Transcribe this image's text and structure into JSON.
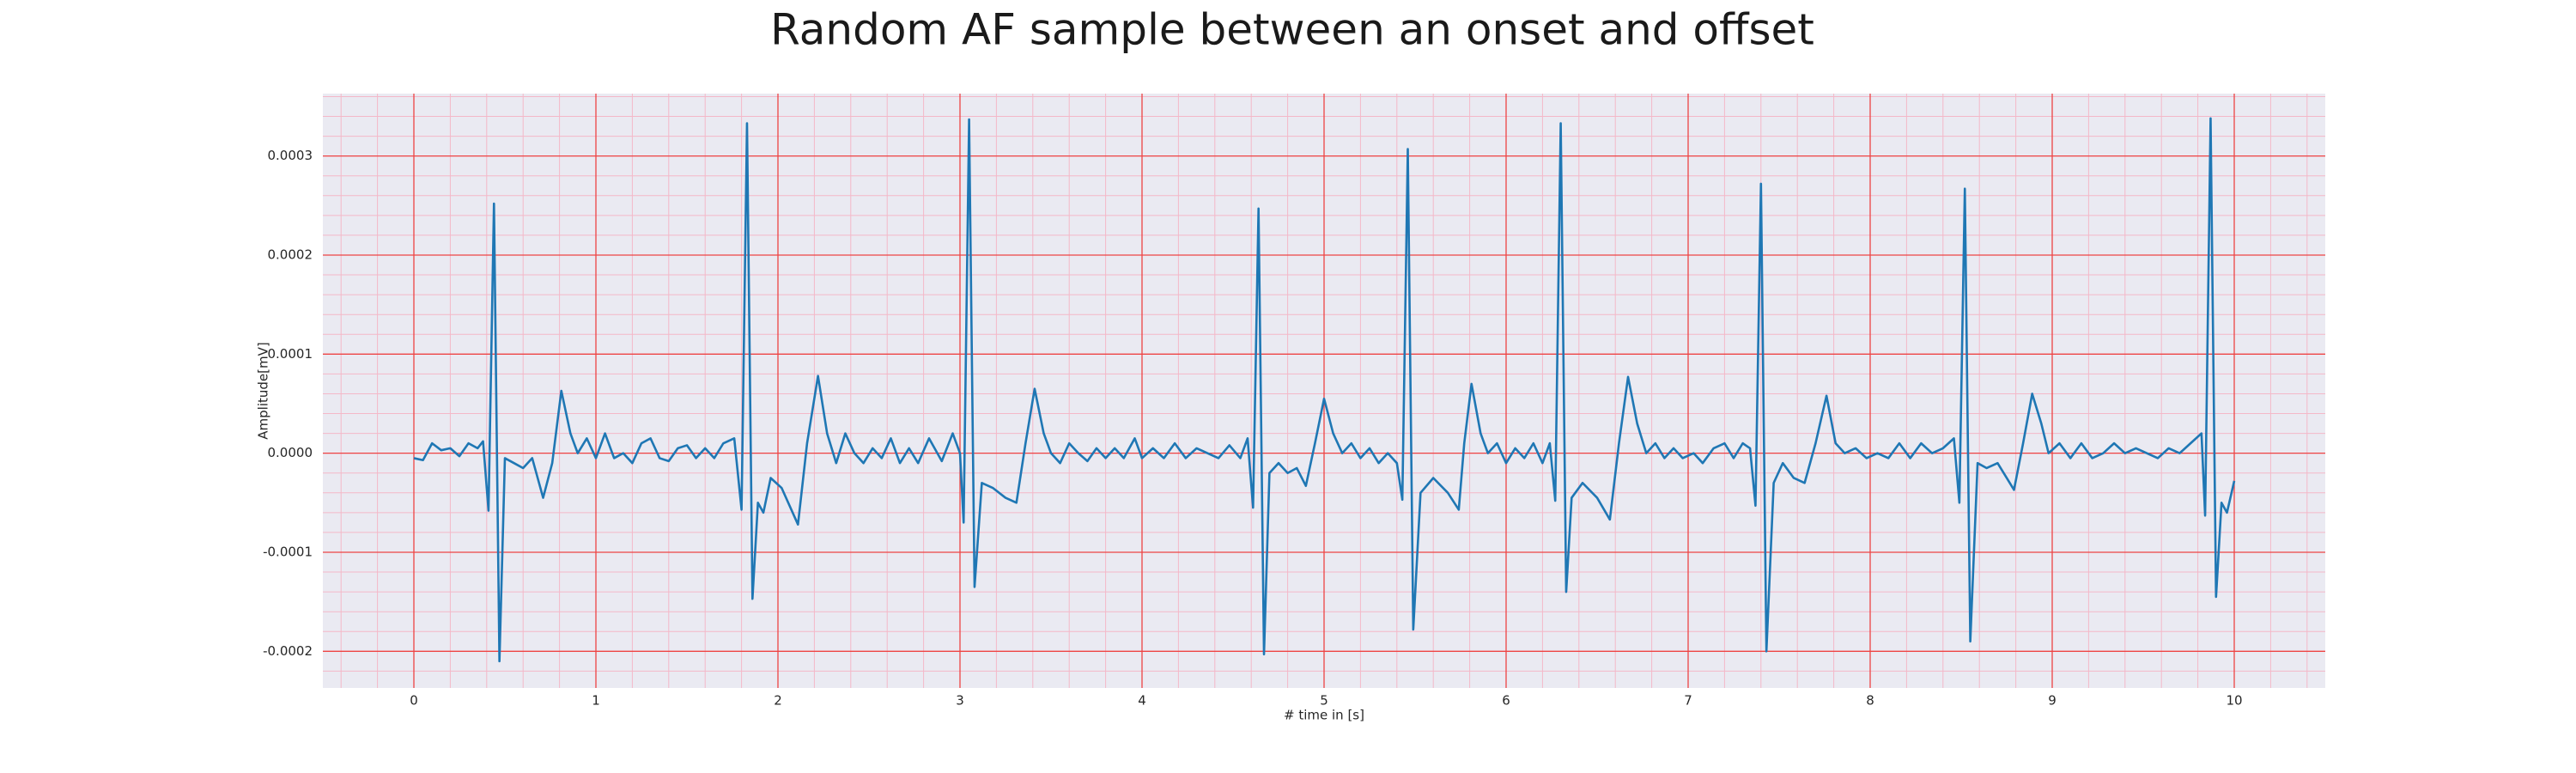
{
  "chart_data": {
    "type": "line",
    "title": "Random AF sample between an onset and offset",
    "x_label": "# time in [s]",
    "y_label": "Amplitude[mV]",
    "xlim": [
      -0.5,
      10.5
    ],
    "ylim": [
      -0.000237,
      0.000363
    ],
    "xticks": [
      0,
      1,
      2,
      3,
      4,
      5,
      6,
      7,
      8,
      9,
      10
    ],
    "yticks": [
      -0.0002,
      -0.0001,
      {
        "value": 0,
        "label": "0.0000"
      },
      0.0001,
      0.0002,
      0.0003
    ],
    "grid": true,
    "grid_color": "#ee4444",
    "minor_grid": true,
    "minor_grid_color": "#f4b8c8",
    "minor_grid_divisions": 5,
    "background": "#eaeaf2",
    "series": [
      {
        "color": "#1f77b4",
        "x": [
          0.0,
          0.05,
          0.1,
          0.15,
          0.2,
          0.25,
          0.3,
          0.35,
          0.38,
          0.41,
          0.44,
          0.47,
          0.5,
          0.55,
          0.6,
          0.65,
          0.71,
          0.76,
          0.81,
          0.86,
          0.9,
          0.95,
          1.0,
          1.05,
          1.1,
          1.15,
          1.2,
          1.25,
          1.3,
          1.35,
          1.4,
          1.45,
          1.5,
          1.55,
          1.6,
          1.65,
          1.7,
          1.76,
          1.8,
          1.83,
          1.86,
          1.89,
          1.92,
          1.96,
          2.02,
          2.11,
          2.16,
          2.22,
          2.27,
          2.32,
          2.37,
          2.42,
          2.47,
          2.52,
          2.57,
          2.62,
          2.67,
          2.72,
          2.77,
          2.83,
          2.9,
          2.96,
          3.0,
          3.02,
          3.05,
          3.08,
          3.12,
          3.18,
          3.25,
          3.31,
          3.36,
          3.41,
          3.46,
          3.5,
          3.55,
          3.6,
          3.65,
          3.7,
          3.75,
          3.8,
          3.85,
          3.9,
          3.96,
          4.0,
          4.06,
          4.12,
          4.18,
          4.24,
          4.3,
          4.36,
          4.42,
          4.48,
          4.54,
          4.58,
          4.61,
          4.64,
          4.67,
          4.7,
          4.75,
          4.8,
          4.85,
          4.9,
          4.95,
          5.0,
          5.05,
          5.1,
          5.15,
          5.2,
          5.25,
          5.3,
          5.35,
          5.4,
          5.43,
          5.46,
          5.49,
          5.53,
          5.6,
          5.68,
          5.74,
          5.77,
          5.81,
          5.86,
          5.9,
          5.95,
          6.0,
          6.05,
          6.1,
          6.15,
          6.2,
          6.24,
          6.27,
          6.3,
          6.33,
          6.36,
          6.42,
          6.5,
          6.57,
          6.62,
          6.67,
          6.72,
          6.77,
          6.82,
          6.87,
          6.92,
          6.97,
          7.03,
          7.08,
          7.14,
          7.2,
          7.25,
          7.3,
          7.34,
          7.37,
          7.4,
          7.43,
          7.47,
          7.52,
          7.58,
          7.64,
          7.7,
          7.76,
          7.81,
          7.86,
          7.92,
          7.98,
          8.04,
          8.1,
          8.16,
          8.22,
          8.28,
          8.34,
          8.4,
          8.46,
          8.49,
          8.52,
          8.55,
          8.59,
          8.64,
          8.7,
          8.75,
          8.79,
          8.84,
          8.89,
          8.94,
          8.98,
          9.04,
          9.1,
          9.16,
          9.22,
          9.28,
          9.34,
          9.4,
          9.46,
          9.52,
          9.58,
          9.64,
          9.7,
          9.76,
          9.82,
          9.84,
          9.87,
          9.9,
          9.93,
          9.96,
          10.0
        ],
        "values": [
          -5e-06,
          -7e-06,
          1e-05,
          3e-06,
          5e-06,
          -3e-06,
          1e-05,
          5e-06,
          1.2e-05,
          -5.8e-05,
          0.000252,
          -0.00021,
          -5e-06,
          -1e-05,
          -1.5e-05,
          -5e-06,
          -4.5e-05,
          -1e-05,
          6.3e-05,
          2e-05,
          0.0,
          1.5e-05,
          -5e-06,
          2e-05,
          -5e-06,
          0.0,
          -1e-05,
          1e-05,
          1.5e-05,
          -5e-06,
          -8e-06,
          5e-06,
          8e-06,
          -5e-06,
          5e-06,
          -5e-06,
          1e-05,
          1.5e-05,
          -5.7e-05,
          0.000333,
          -0.000147,
          -5e-05,
          -6e-05,
          -2.5e-05,
          -3.5e-05,
          -7.2e-05,
          1e-05,
          7.8e-05,
          2e-05,
          -1e-05,
          2e-05,
          0.0,
          -1e-05,
          5e-06,
          -5e-06,
          1.5e-05,
          -1e-05,
          5e-06,
          -1e-05,
          1.5e-05,
          -8e-06,
          2e-05,
          0.0,
          -7e-05,
          0.000337,
          -0.000135,
          -3e-05,
          -3.5e-05,
          -4.5e-05,
          -5e-05,
          1e-05,
          6.5e-05,
          2e-05,
          0.0,
          -1e-05,
          1e-05,
          0.0,
          -8e-06,
          5e-06,
          -5e-06,
          5e-06,
          -5e-06,
          1.5e-05,
          -5e-06,
          5e-06,
          -5e-06,
          1e-05,
          -5e-06,
          5e-06,
          0.0,
          -5e-06,
          8e-06,
          -5e-06,
          1.5e-05,
          -5.5e-05,
          0.000247,
          -0.000203,
          -2e-05,
          -1e-05,
          -2e-05,
          -1.5e-05,
          -3.3e-05,
          1e-05,
          5.5e-05,
          2e-05,
          0.0,
          1e-05,
          -5e-06,
          5e-06,
          -1e-05,
          0.0,
          -1e-05,
          -4.7e-05,
          0.000307,
          -0.000178,
          -4e-05,
          -2.5e-05,
          -4e-05,
          -5.7e-05,
          1e-05,
          7e-05,
          2e-05,
          0.0,
          1e-05,
          -1e-05,
          5e-06,
          -5e-06,
          1e-05,
          -1e-05,
          1e-05,
          -4.8e-05,
          0.000333,
          -0.00014,
          -4.5e-05,
          -3e-05,
          -4.5e-05,
          -6.7e-05,
          1e-05,
          7.7e-05,
          3e-05,
          0.0,
          1e-05,
          -5e-06,
          5e-06,
          -5e-06,
          0.0,
          -1e-05,
          5e-06,
          1e-05,
          -5e-06,
          1e-05,
          5e-06,
          -5.3e-05,
          0.000272,
          -0.0002,
          -3e-05,
          -1e-05,
          -2.5e-05,
          -3e-05,
          1e-05,
          5.8e-05,
          1e-05,
          0.0,
          5e-06,
          -5e-06,
          0.0,
          -5e-06,
          1e-05,
          -5e-06,
          1e-05,
          0.0,
          5e-06,
          1.5e-05,
          -5e-05,
          0.000267,
          -0.00019,
          -1e-05,
          -1.5e-05,
          -1e-05,
          -2.5e-05,
          -3.7e-05,
          1e-05,
          6e-05,
          3e-05,
          0.0,
          1e-05,
          -5e-06,
          1e-05,
          -5e-06,
          0.0,
          1e-05,
          0.0,
          5e-06,
          0.0,
          -5e-06,
          5e-06,
          0.0,
          1e-05,
          2e-05,
          -6.3e-05,
          0.000338,
          -0.000145,
          -5e-05,
          -6e-05,
          -2.8e-05
        ]
      }
    ]
  }
}
